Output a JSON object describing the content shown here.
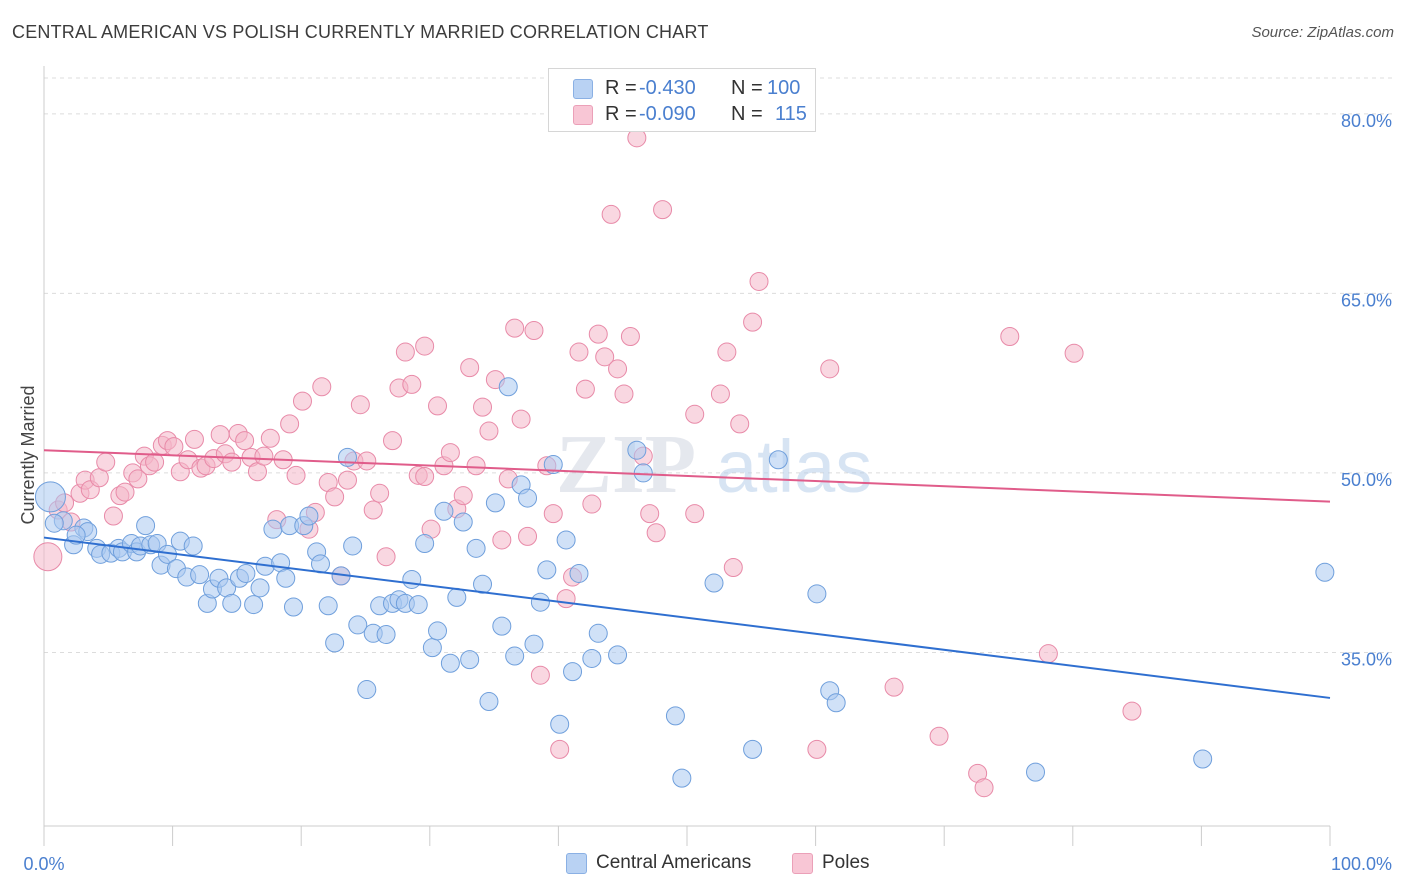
{
  "title": "CENTRAL AMERICAN VS POLISH CURRENTLY MARRIED CORRELATION CHART",
  "source": "Source: ZipAtlas.com",
  "watermark": {
    "zip": "ZIP",
    "atlas": "atlas"
  },
  "colors": {
    "blue_fill": "#a9c8f0",
    "blue_stroke": "#6f9fdc",
    "blue_line": "#2f6fd0",
    "pink_fill": "#f4b6c9",
    "pink_stroke": "#e88aa8",
    "pink_line": "#e05c8a",
    "axis_text": "#4a7fcf",
    "grid": "#dcdcdc"
  },
  "legend_top": [
    {
      "r_label": "R =",
      "r_value": "-0.430",
      "n_label": "N =",
      "n_value": "100",
      "color": "blue"
    },
    {
      "r_label": "R =",
      "r_value": "-0.090",
      "n_label": "N =",
      "n_value": "115",
      "color": "pink"
    }
  ],
  "legend_bottom": [
    {
      "label": "Central Americans",
      "color": "blue"
    },
    {
      "label": "Poles",
      "color": "pink"
    }
  ],
  "chart_data": {
    "type": "scatter",
    "title": "CENTRAL AMERICAN VS POLISH CURRENTLY MARRIED CORRELATION CHART",
    "xlabel": "",
    "ylabel": "Currently Married",
    "xlim": [
      0,
      100
    ],
    "ylim": [
      20.5,
      83.5
    ],
    "x_tick_labels": [
      "0.0%",
      "100.0%"
    ],
    "y_ticks": [
      35,
      50,
      65,
      80
    ],
    "y_tick_labels": [
      "35.0%",
      "50.0%",
      "65.0%",
      "80.0%"
    ],
    "grid": "dashed horizontal",
    "legend": "top-center and bottom",
    "series": [
      {
        "name": "Central Americans",
        "color": "blue",
        "r": -0.43,
        "n": 100,
        "trend": {
          "x": [
            0,
            100
          ],
          "y": [
            44.6,
            31.2
          ]
        },
        "points": [
          [
            0.5,
            48.0
          ],
          [
            1.5,
            46.0
          ],
          [
            2.3,
            44.0
          ],
          [
            3.1,
            45.4
          ],
          [
            3.4,
            45.1
          ],
          [
            4.1,
            43.7
          ],
          [
            4.4,
            43.2
          ],
          [
            5.2,
            43.3
          ],
          [
            5.8,
            43.7
          ],
          [
            6.1,
            43.4
          ],
          [
            6.8,
            44.1
          ],
          [
            7.2,
            43.4
          ],
          [
            7.5,
            43.9
          ],
          [
            7.9,
            45.6
          ],
          [
            8.3,
            44.0
          ],
          [
            8.8,
            44.1
          ],
          [
            9.1,
            42.3
          ],
          [
            9.6,
            43.2
          ],
          [
            10.3,
            42.0
          ],
          [
            10.6,
            44.3
          ],
          [
            11.1,
            41.3
          ],
          [
            11.6,
            43.9
          ],
          [
            12.1,
            41.5
          ],
          [
            12.7,
            39.1
          ],
          [
            13.1,
            40.3
          ],
          [
            13.6,
            41.2
          ],
          [
            14.2,
            40.4
          ],
          [
            14.6,
            39.1
          ],
          [
            15.2,
            41.2
          ],
          [
            15.7,
            41.6
          ],
          [
            16.3,
            39.0
          ],
          [
            16.8,
            40.4
          ],
          [
            17.2,
            42.2
          ],
          [
            17.8,
            45.3
          ],
          [
            18.4,
            42.5
          ],
          [
            18.8,
            41.2
          ],
          [
            19.1,
            45.6
          ],
          [
            19.4,
            38.8
          ],
          [
            20.2,
            45.6
          ],
          [
            20.6,
            46.4
          ],
          [
            21.2,
            43.4
          ],
          [
            21.5,
            42.4
          ],
          [
            22.1,
            38.9
          ],
          [
            22.6,
            35.8
          ],
          [
            23.1,
            41.4
          ],
          [
            23.6,
            51.3
          ],
          [
            24.0,
            43.9
          ],
          [
            24.4,
            37.3
          ],
          [
            25.1,
            31.9
          ],
          [
            25.6,
            36.6
          ],
          [
            26.1,
            38.9
          ],
          [
            26.6,
            36.5
          ],
          [
            27.1,
            39.1
          ],
          [
            27.6,
            39.4
          ],
          [
            28.1,
            39.1
          ],
          [
            28.6,
            41.1
          ],
          [
            29.1,
            39.0
          ],
          [
            29.6,
            44.1
          ],
          [
            30.2,
            35.4
          ],
          [
            30.6,
            36.8
          ],
          [
            31.1,
            46.8
          ],
          [
            31.6,
            34.1
          ],
          [
            32.1,
            39.6
          ],
          [
            32.6,
            45.9
          ],
          [
            33.1,
            34.4
          ],
          [
            33.6,
            43.7
          ],
          [
            34.1,
            40.7
          ],
          [
            34.6,
            30.9
          ],
          [
            35.1,
            47.5
          ],
          [
            35.6,
            37.2
          ],
          [
            36.1,
            57.2
          ],
          [
            36.6,
            34.7
          ],
          [
            37.1,
            49.0
          ],
          [
            37.6,
            47.9
          ],
          [
            38.1,
            35.7
          ],
          [
            38.6,
            39.2
          ],
          [
            39.1,
            41.9
          ],
          [
            39.6,
            50.7
          ],
          [
            40.1,
            29.0
          ],
          [
            40.6,
            44.4
          ],
          [
            41.1,
            33.4
          ],
          [
            41.6,
            41.6
          ],
          [
            42.6,
            34.5
          ],
          [
            43.1,
            36.6
          ],
          [
            44.6,
            34.8
          ],
          [
            46.1,
            51.9
          ],
          [
            46.6,
            50.0
          ],
          [
            49.1,
            29.7
          ],
          [
            49.6,
            24.5
          ],
          [
            52.1,
            40.8
          ],
          [
            55.1,
            26.9
          ],
          [
            57.1,
            51.1
          ],
          [
            60.1,
            39.9
          ],
          [
            61.1,
            31.8
          ],
          [
            61.6,
            30.8
          ],
          [
            77.1,
            25.0
          ],
          [
            90.1,
            26.1
          ],
          [
            99.6,
            41.7
          ],
          [
            0.8,
            45.8
          ],
          [
            2.5,
            44.8
          ]
        ]
      },
      {
        "name": "Poles",
        "color": "pink",
        "r": -0.09,
        "n": 115,
        "trend": {
          "x": [
            0,
            100
          ],
          "y": [
            51.9,
            47.6
          ]
        },
        "points": [
          [
            0.3,
            43.0
          ],
          [
            1.1,
            46.9
          ],
          [
            1.6,
            47.5
          ],
          [
            2.1,
            45.9
          ],
          [
            2.8,
            48.3
          ],
          [
            3.2,
            49.4
          ],
          [
            3.6,
            48.6
          ],
          [
            4.3,
            49.6
          ],
          [
            4.8,
            50.9
          ],
          [
            5.4,
            46.4
          ],
          [
            5.9,
            48.1
          ],
          [
            6.3,
            48.4
          ],
          [
            6.9,
            50.0
          ],
          [
            7.3,
            49.5
          ],
          [
            7.8,
            51.4
          ],
          [
            8.2,
            50.6
          ],
          [
            8.6,
            50.9
          ],
          [
            9.2,
            52.3
          ],
          [
            9.6,
            52.7
          ],
          [
            10.1,
            52.2
          ],
          [
            10.6,
            50.1
          ],
          [
            11.2,
            51.1
          ],
          [
            11.7,
            52.8
          ],
          [
            12.2,
            50.4
          ],
          [
            12.6,
            50.6
          ],
          [
            13.2,
            51.2
          ],
          [
            13.7,
            53.2
          ],
          [
            14.1,
            51.6
          ],
          [
            14.6,
            50.9
          ],
          [
            15.1,
            53.3
          ],
          [
            15.6,
            52.7
          ],
          [
            16.1,
            51.3
          ],
          [
            16.6,
            50.1
          ],
          [
            17.1,
            51.4
          ],
          [
            17.6,
            52.9
          ],
          [
            18.1,
            46.1
          ],
          [
            18.6,
            51.1
          ],
          [
            19.1,
            54.1
          ],
          [
            19.6,
            49.8
          ],
          [
            20.1,
            56.0
          ],
          [
            20.6,
            45.3
          ],
          [
            21.1,
            46.7
          ],
          [
            21.6,
            57.2
          ],
          [
            22.1,
            49.2
          ],
          [
            22.6,
            48.0
          ],
          [
            23.1,
            41.4
          ],
          [
            23.6,
            49.4
          ],
          [
            24.1,
            51.0
          ],
          [
            24.6,
            55.7
          ],
          [
            25.1,
            51.0
          ],
          [
            25.6,
            46.9
          ],
          [
            26.1,
            48.3
          ],
          [
            26.6,
            43.0
          ],
          [
            27.1,
            52.7
          ],
          [
            27.6,
            57.1
          ],
          [
            28.1,
            60.1
          ],
          [
            28.6,
            57.4
          ],
          [
            29.1,
            49.8
          ],
          [
            29.6,
            60.6
          ],
          [
            30.1,
            45.3
          ],
          [
            30.6,
            55.6
          ],
          [
            31.1,
            50.6
          ],
          [
            31.6,
            51.7
          ],
          [
            32.1,
            47.0
          ],
          [
            32.6,
            48.1
          ],
          [
            33.1,
            58.8
          ],
          [
            33.6,
            50.6
          ],
          [
            34.1,
            55.5
          ],
          [
            34.6,
            53.5
          ],
          [
            35.1,
            57.8
          ],
          [
            35.6,
            44.4
          ],
          [
            36.1,
            49.5
          ],
          [
            36.6,
            62.1
          ],
          [
            37.1,
            54.5
          ],
          [
            37.6,
            44.7
          ],
          [
            38.1,
            61.9
          ],
          [
            38.6,
            33.1
          ],
          [
            39.1,
            50.6
          ],
          [
            39.6,
            46.6
          ],
          [
            40.1,
            26.9
          ],
          [
            40.6,
            39.5
          ],
          [
            41.1,
            41.3
          ],
          [
            41.6,
            60.1
          ],
          [
            42.1,
            57.0
          ],
          [
            42.6,
            47.4
          ],
          [
            43.1,
            61.6
          ],
          [
            43.6,
            59.7
          ],
          [
            44.1,
            71.6
          ],
          [
            44.6,
            58.7
          ],
          [
            45.1,
            56.6
          ],
          [
            45.6,
            61.4
          ],
          [
            46.1,
            78.0
          ],
          [
            46.6,
            51.4
          ],
          [
            47.1,
            46.6
          ],
          [
            47.6,
            45.0
          ],
          [
            48.1,
            72.0
          ],
          [
            50.6,
            54.9
          ],
          [
            50.6,
            46.6
          ],
          [
            52.6,
            56.6
          ],
          [
            53.1,
            60.1
          ],
          [
            53.6,
            42.1
          ],
          [
            54.1,
            54.1
          ],
          [
            55.1,
            62.6
          ],
          [
            55.6,
            66.0
          ],
          [
            60.1,
            26.9
          ],
          [
            61.1,
            58.7
          ],
          [
            66.1,
            32.1
          ],
          [
            69.6,
            28.0
          ],
          [
            72.6,
            24.9
          ],
          [
            73.1,
            23.7
          ],
          [
            75.1,
            61.4
          ],
          [
            78.1,
            34.9
          ],
          [
            80.1,
            60.0
          ],
          [
            84.6,
            30.1
          ],
          [
            29.6,
            49.7
          ]
        ]
      }
    ]
  }
}
